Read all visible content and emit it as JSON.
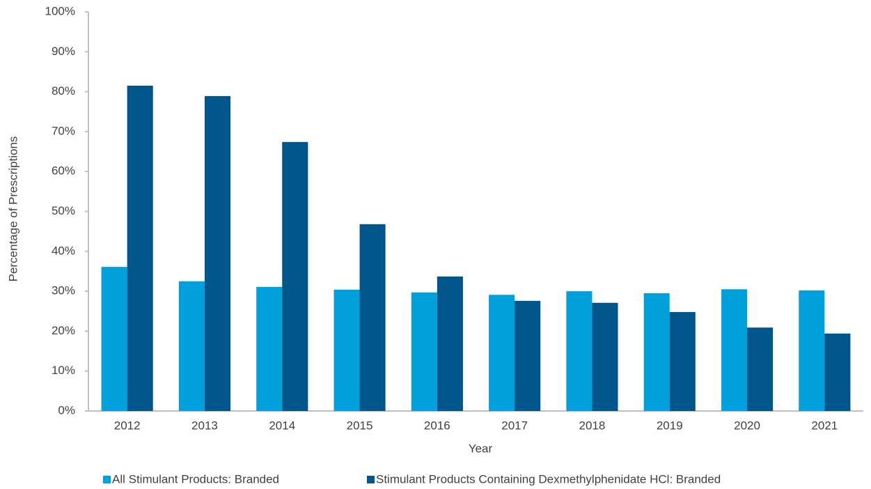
{
  "chart_data": {
    "type": "bar",
    "xlabel": "Year",
    "ylabel": "Percentage of Prescriptions",
    "categories": [
      "2012",
      "2013",
      "2014",
      "2015",
      "2016",
      "2017",
      "2018",
      "2019",
      "2020",
      "2021"
    ],
    "series": [
      {
        "name": "All Stimulant Products: Branded",
        "color": "#00a0dc",
        "values": [
          36.1,
          32.5,
          31.1,
          30.4,
          29.7,
          29.1,
          30.0,
          29.5,
          30.5,
          30.2
        ]
      },
      {
        "name": "Stimulant Products Containing Dexmethylphenidate HCl: Branded",
        "color": "#00558a",
        "values": [
          81.5,
          78.9,
          67.4,
          46.8,
          33.7,
          27.6,
          27.1,
          24.8,
          20.9,
          19.4
        ]
      }
    ],
    "ylim": [
      0,
      100
    ],
    "yticks": [
      {
        "value": 0,
        "label": "0%"
      },
      {
        "value": 10,
        "label": "10%"
      },
      {
        "value": 20,
        "label": "20%"
      },
      {
        "value": 30,
        "label": "30%"
      },
      {
        "value": 40,
        "label": "40%"
      },
      {
        "value": 50,
        "label": "50%"
      },
      {
        "value": 60,
        "label": "60%"
      },
      {
        "value": 70,
        "label": "70%"
      },
      {
        "value": 80,
        "label": "80%"
      },
      {
        "value": 90,
        "label": "90%"
      },
      {
        "value": 100,
        "label": "100%"
      }
    ],
    "grid": false,
    "legend": "bottom"
  }
}
